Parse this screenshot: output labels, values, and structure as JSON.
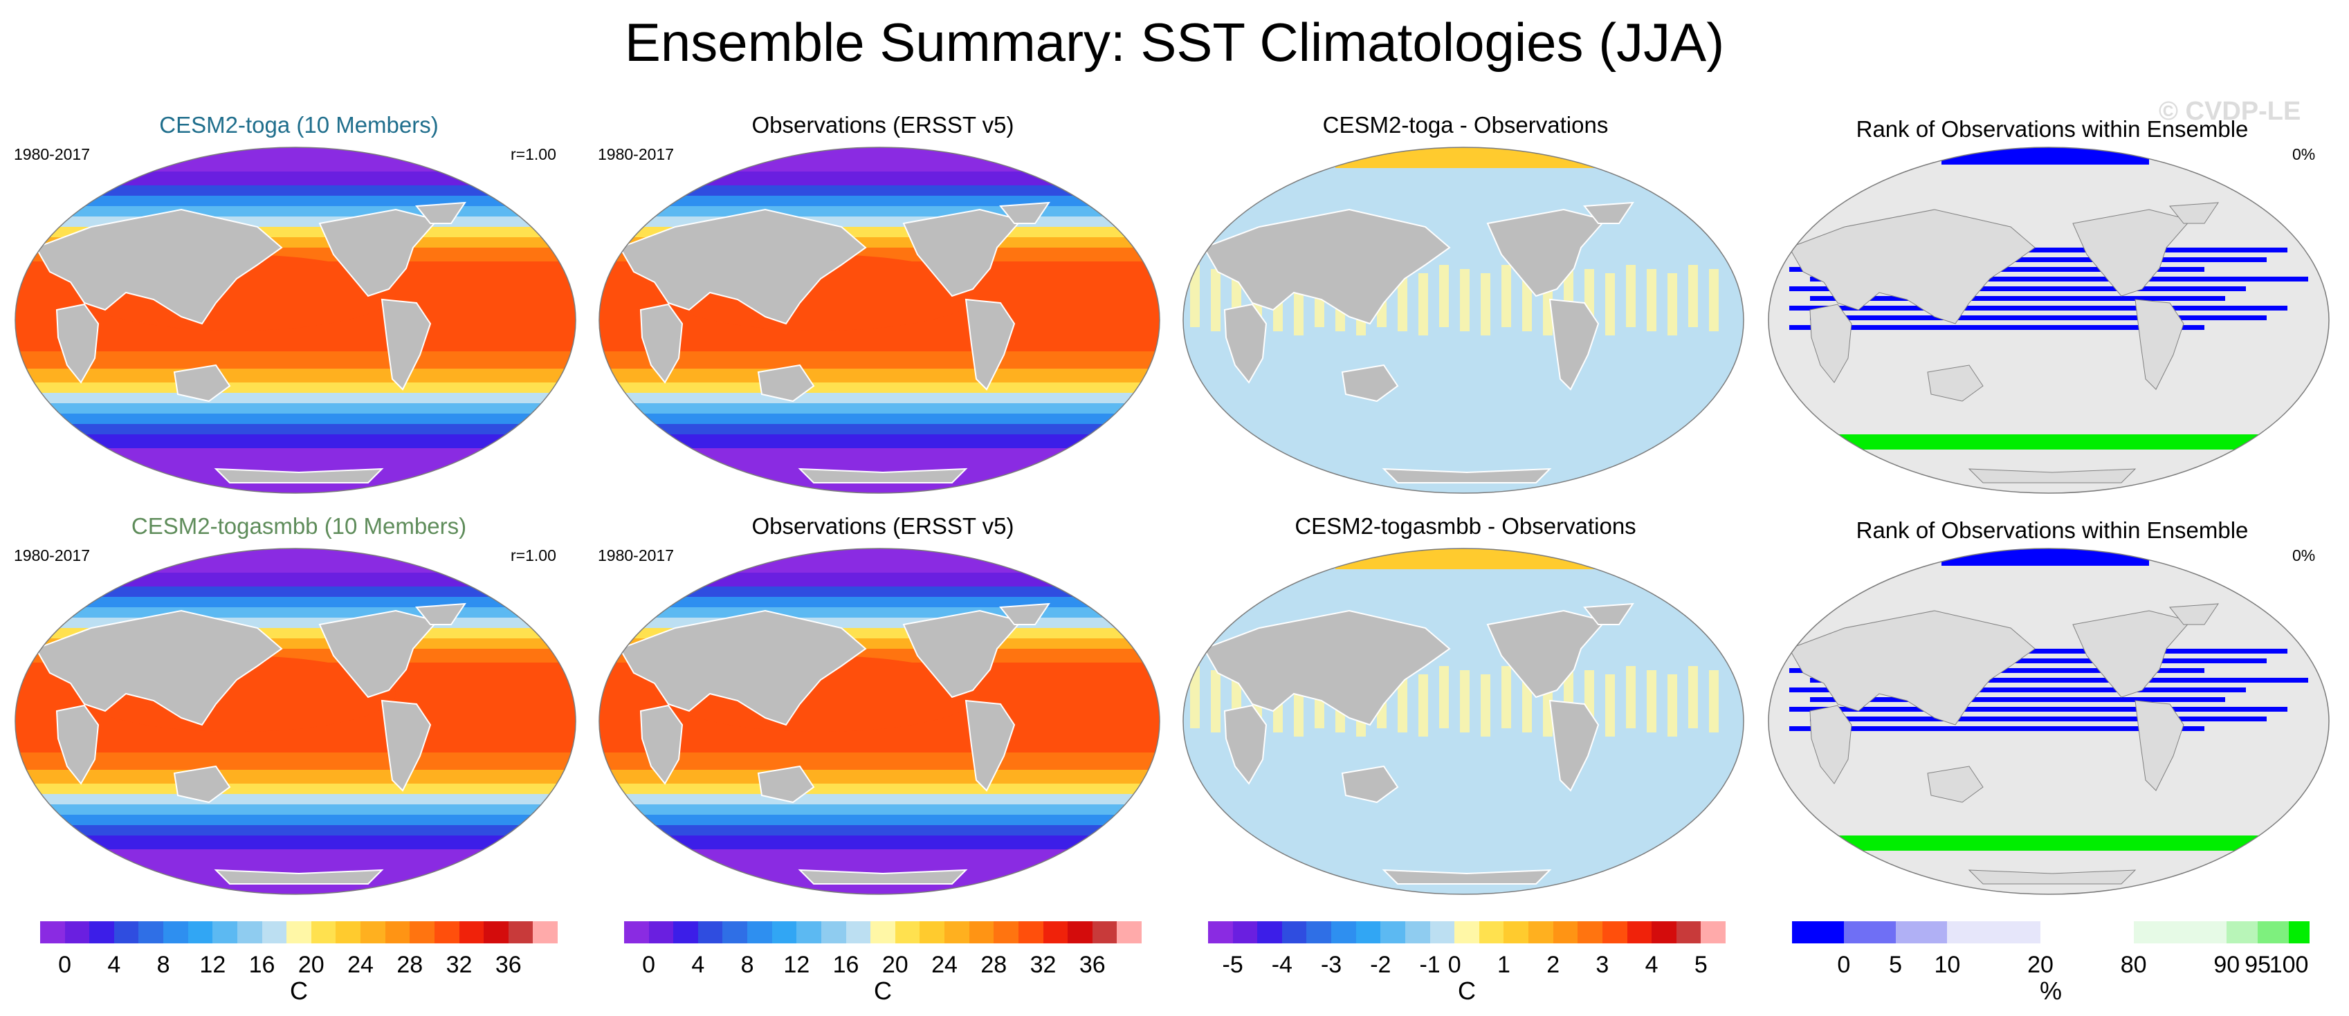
{
  "title": "Ensemble Summary: SST Climatologies (JJA)",
  "watermark": "© CVDP-LE",
  "colors": {
    "land": "#bdbdbd",
    "model1_title": "#1f6e8c",
    "model2_title": "#5e8c5a"
  },
  "panels": [
    {
      "id": "r1c1",
      "title": "CESM2-toga (10 Members)",
      "left_label": "1980-2017",
      "right_label": "r=1.00",
      "kind": "sst"
    },
    {
      "id": "r1c2",
      "title": "Observations (ERSST v5)",
      "left_label": "1980-2017",
      "right_label": "",
      "kind": "sst"
    },
    {
      "id": "r1c3",
      "title": "CESM2-toga - Observations",
      "left_label": "",
      "right_label": "",
      "kind": "diff"
    },
    {
      "id": "r1c4",
      "title": "Rank of Observations within Ensemble",
      "left_label": "",
      "right_label": "0%",
      "kind": "rank"
    },
    {
      "id": "r2c1",
      "title": "CESM2-togasmbb (10 Members)",
      "left_label": "1980-2017",
      "right_label": "r=1.00",
      "kind": "sst"
    },
    {
      "id": "r2c2",
      "title": "Observations (ERSST v5)",
      "left_label": "1980-2017",
      "right_label": "",
      "kind": "sst"
    },
    {
      "id": "r2c3",
      "title": "CESM2-togasmbb - Observations",
      "left_label": "",
      "right_label": "",
      "kind": "diff"
    },
    {
      "id": "r2c4",
      "title": "Rank of Observations within Ensemble",
      "left_label": "",
      "right_label": "0%",
      "kind": "rank"
    }
  ],
  "chart_data": [
    {
      "type": "heatmap",
      "name": "sst_colorbar",
      "unit": "C",
      "tick_labels": [
        "0",
        "4",
        "8",
        "12",
        "16",
        "20",
        "24",
        "28",
        "32",
        "36"
      ],
      "tick_values": [
        0,
        4,
        8,
        12,
        16,
        20,
        24,
        28,
        32,
        36
      ],
      "levels": [
        -2,
        0,
        2,
        4,
        6,
        8,
        10,
        12,
        14,
        16,
        18,
        20,
        22,
        24,
        26,
        28,
        30,
        32,
        34,
        36,
        38
      ],
      "colors": [
        "#8a2be2",
        "#6a1fe0",
        "#3c1ee8",
        "#2f4de0",
        "#2f6fe6",
        "#2e8ff0",
        "#31a6f4",
        "#5cb9f2",
        "#8fccf0",
        "#bcdff2",
        "#fff7a6",
        "#ffe14f",
        "#ffcb2e",
        "#ffb01f",
        "#ff9414",
        "#ff7410",
        "#ff4f0c",
        "#f0220a",
        "#d40c0c",
        "#c83a3a",
        "#ffaaaa"
      ]
    },
    {
      "type": "heatmap",
      "name": "diff_colorbar",
      "unit": "C",
      "tick_labels": [
        "-5",
        "-4",
        "-3",
        "-2",
        "-1",
        "0",
        "1",
        "2",
        "3",
        "4",
        "5"
      ],
      "tick_values": [
        -5,
        -4,
        -3,
        -2,
        -1,
        0,
        1,
        2,
        3,
        4,
        5
      ],
      "colors": [
        "#8a2be2",
        "#6a1fe0",
        "#3c1ee8",
        "#2f4de0",
        "#2f6fe6",
        "#2e8ff0",
        "#31a6f4",
        "#5cb9f2",
        "#8fccf0",
        "#bcdff2",
        "#fff7a6",
        "#ffe14f",
        "#ffcb2e",
        "#ffb01f",
        "#ff9414",
        "#ff7410",
        "#ff4f0c",
        "#f0220a",
        "#d40c0c",
        "#c83a3a",
        "#ffaaaa"
      ]
    },
    {
      "type": "heatmap",
      "name": "rank_colorbar",
      "unit": "%",
      "tick_labels": [
        "0",
        "5",
        "10",
        "20",
        "80",
        "90",
        "95",
        "100"
      ],
      "tick_values": [
        0,
        5,
        10,
        20,
        80,
        90,
        95,
        100
      ],
      "colors": [
        "#0000ff",
        "#6f6ff5",
        "#b0b0f5",
        "#e6e6fa",
        "#ffffff",
        "#e6fae6",
        "#b8f5b8",
        "#7ef07e",
        "#00ee00"
      ]
    }
  ]
}
